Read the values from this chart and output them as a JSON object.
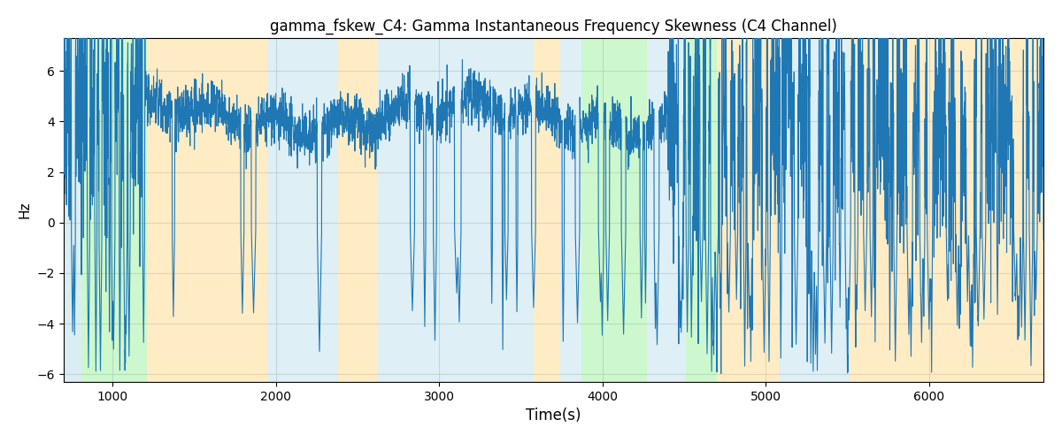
{
  "title": "gamma_fskew_C4: Gamma Instantaneous Frequency Skewness (C4 Channel)",
  "xlabel": "Time(s)",
  "ylabel": "Hz",
  "xlim": [
    700,
    6700
  ],
  "ylim": [
    -6.3,
    7.3
  ],
  "line_color": "#1f77b4",
  "line_width": 0.8,
  "background_color": "#ffffff",
  "grid_color": "#aaaaaa",
  "grid_alpha": 0.5,
  "yticks": [
    -6,
    -4,
    -2,
    0,
    2,
    4,
    6
  ],
  "xticks": [
    1000,
    2000,
    3000,
    4000,
    5000,
    6000
  ],
  "bands": [
    {
      "xmin": 700,
      "xmax": 810,
      "color": "#add8e6",
      "alpha": 0.45
    },
    {
      "xmin": 810,
      "xmax": 1210,
      "color": "#90ee90",
      "alpha": 0.45
    },
    {
      "xmin": 1210,
      "xmax": 1950,
      "color": "#ffd580",
      "alpha": 0.45
    },
    {
      "xmin": 1950,
      "xmax": 2380,
      "color": "#add8e6",
      "alpha": 0.4
    },
    {
      "xmin": 2380,
      "xmax": 2620,
      "color": "#ffd580",
      "alpha": 0.45
    },
    {
      "xmin": 2620,
      "xmax": 3580,
      "color": "#add8e6",
      "alpha": 0.4
    },
    {
      "xmin": 3580,
      "xmax": 3740,
      "color": "#ffd580",
      "alpha": 0.45
    },
    {
      "xmin": 3740,
      "xmax": 3870,
      "color": "#add8e6",
      "alpha": 0.4
    },
    {
      "xmin": 3870,
      "xmax": 4270,
      "color": "#90ee90",
      "alpha": 0.45
    },
    {
      "xmin": 4270,
      "xmax": 4510,
      "color": "#add8e6",
      "alpha": 0.4
    },
    {
      "xmin": 4510,
      "xmax": 4700,
      "color": "#90ee90",
      "alpha": 0.45
    },
    {
      "xmin": 4700,
      "xmax": 5080,
      "color": "#ffd580",
      "alpha": 0.45
    },
    {
      "xmin": 5080,
      "xmax": 5370,
      "color": "#add8e6",
      "alpha": 0.4
    },
    {
      "xmin": 5370,
      "xmax": 5510,
      "color": "#add8e6",
      "alpha": 0.4
    },
    {
      "xmin": 5510,
      "xmax": 5750,
      "color": "#ffd580",
      "alpha": 0.45
    },
    {
      "xmin": 5750,
      "xmax": 6700,
      "color": "#ffd580",
      "alpha": 0.45
    }
  ],
  "seed": 42,
  "n_points": 5000
}
